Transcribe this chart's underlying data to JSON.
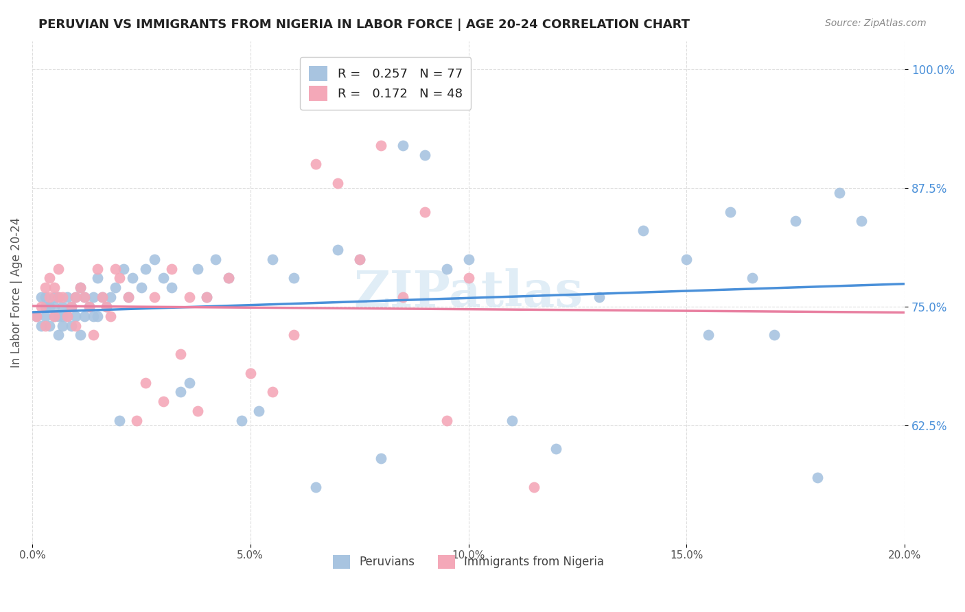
{
  "title": "PERUVIAN VS IMMIGRANTS FROM NIGERIA IN LABOR FORCE | AGE 20-24 CORRELATION CHART",
  "source": "Source: ZipAtlas.com",
  "xlabel": "",
  "ylabel": "In Labor Force | Age 20-24",
  "xlim": [
    0.0,
    0.2
  ],
  "ylim": [
    0.5,
    1.03
  ],
  "xtick_labels": [
    "0.0%",
    "5.0%",
    "10.0%",
    "15.0%",
    "20.0%"
  ],
  "xtick_values": [
    0.0,
    0.05,
    0.1,
    0.15,
    0.2
  ],
  "ytick_labels": [
    "62.5%",
    "75.0%",
    "87.5%",
    "100.0%"
  ],
  "ytick_values": [
    0.625,
    0.75,
    0.875,
    1.0
  ],
  "blue_color": "#a8c4e0",
  "pink_color": "#f4a8b8",
  "blue_line_color": "#4a90d9",
  "pink_line_color": "#e87fa0",
  "blue_R": 0.257,
  "blue_N": 77,
  "pink_R": 0.172,
  "pink_N": 48,
  "watermark": "ZIPatlas",
  "background_color": "#ffffff",
  "grid_color": "#dddddd",
  "blue_scatter_x": [
    0.001,
    0.002,
    0.002,
    0.003,
    0.003,
    0.003,
    0.004,
    0.004,
    0.004,
    0.005,
    0.005,
    0.005,
    0.006,
    0.006,
    0.006,
    0.007,
    0.007,
    0.007,
    0.008,
    0.008,
    0.009,
    0.009,
    0.01,
    0.01,
    0.011,
    0.011,
    0.012,
    0.012,
    0.013,
    0.014,
    0.014,
    0.015,
    0.015,
    0.016,
    0.017,
    0.018,
    0.019,
    0.02,
    0.021,
    0.022,
    0.023,
    0.025,
    0.026,
    0.028,
    0.03,
    0.032,
    0.034,
    0.036,
    0.038,
    0.04,
    0.042,
    0.045,
    0.048,
    0.052,
    0.055,
    0.06,
    0.065,
    0.07,
    0.075,
    0.08,
    0.085,
    0.09,
    0.095,
    0.1,
    0.11,
    0.12,
    0.13,
    0.14,
    0.15,
    0.155,
    0.16,
    0.165,
    0.17,
    0.175,
    0.18,
    0.185,
    0.19
  ],
  "blue_scatter_y": [
    0.74,
    0.76,
    0.73,
    0.75,
    0.76,
    0.74,
    0.75,
    0.73,
    0.75,
    0.74,
    0.75,
    0.76,
    0.72,
    0.74,
    0.76,
    0.74,
    0.73,
    0.75,
    0.74,
    0.76,
    0.75,
    0.73,
    0.74,
    0.76,
    0.72,
    0.77,
    0.74,
    0.76,
    0.75,
    0.74,
    0.76,
    0.74,
    0.78,
    0.76,
    0.75,
    0.76,
    0.77,
    0.63,
    0.79,
    0.76,
    0.78,
    0.77,
    0.79,
    0.8,
    0.78,
    0.77,
    0.66,
    0.67,
    0.79,
    0.76,
    0.8,
    0.78,
    0.63,
    0.64,
    0.8,
    0.78,
    0.56,
    0.81,
    0.8,
    0.59,
    0.92,
    0.91,
    0.79,
    0.8,
    0.63,
    0.6,
    0.76,
    0.83,
    0.8,
    0.72,
    0.85,
    0.78,
    0.72,
    0.84,
    0.57,
    0.87,
    0.84
  ],
  "pink_scatter_x": [
    0.001,
    0.002,
    0.003,
    0.003,
    0.004,
    0.004,
    0.005,
    0.005,
    0.006,
    0.006,
    0.007,
    0.008,
    0.009,
    0.01,
    0.01,
    0.011,
    0.012,
    0.013,
    0.014,
    0.015,
    0.016,
    0.017,
    0.018,
    0.019,
    0.02,
    0.022,
    0.024,
    0.026,
    0.028,
    0.03,
    0.032,
    0.034,
    0.036,
    0.038,
    0.04,
    0.045,
    0.05,
    0.055,
    0.06,
    0.065,
    0.07,
    0.075,
    0.08,
    0.085,
    0.09,
    0.095,
    0.1,
    0.115
  ],
  "pink_scatter_y": [
    0.74,
    0.75,
    0.73,
    0.77,
    0.76,
    0.78,
    0.74,
    0.77,
    0.76,
    0.79,
    0.76,
    0.74,
    0.75,
    0.76,
    0.73,
    0.77,
    0.76,
    0.75,
    0.72,
    0.79,
    0.76,
    0.75,
    0.74,
    0.79,
    0.78,
    0.76,
    0.63,
    0.67,
    0.76,
    0.65,
    0.79,
    0.7,
    0.76,
    0.64,
    0.76,
    0.78,
    0.68,
    0.66,
    0.72,
    0.9,
    0.88,
    0.8,
    0.92,
    0.76,
    0.85,
    0.63,
    0.78,
    0.56
  ]
}
